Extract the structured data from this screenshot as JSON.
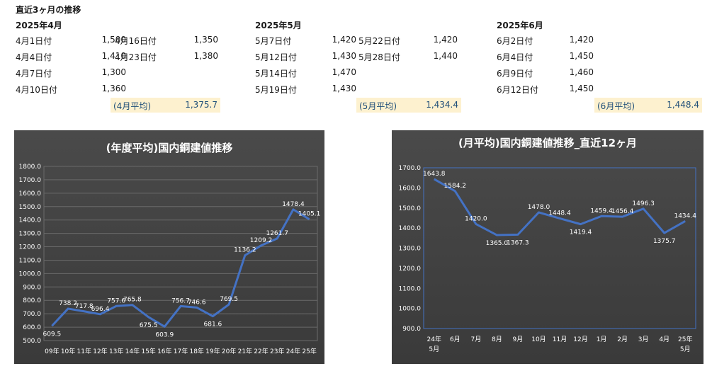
{
  "page_title": "直近3ヶ月の推移",
  "months": [
    {
      "heading": "2025年4月",
      "entries": [
        {
          "date": "4月1日付",
          "value": "1,500"
        },
        {
          "date": "4月4日付",
          "value": "1,410"
        },
        {
          "date": "4月7日付",
          "value": "1,300"
        },
        {
          "date": "4月10日付",
          "value": "1,360"
        },
        {
          "date": "4月16日付",
          "value": "1,350"
        },
        {
          "date": "4月23日付",
          "value": "1,380"
        }
      ],
      "avg_label": "(4月平均)",
      "avg_value": "1,375.7"
    },
    {
      "heading": "2025年5月",
      "entries": [
        {
          "date": "5月7日付",
          "value": "1,420"
        },
        {
          "date": "5月12日付",
          "value": "1,430"
        },
        {
          "date": "5月14日付",
          "value": "1,470"
        },
        {
          "date": "5月19日付",
          "value": "1,430"
        },
        {
          "date": "5月22日付",
          "value": "1,420"
        },
        {
          "date": "5月28日付",
          "value": "1,440"
        }
      ],
      "avg_label": "(5月平均)",
      "avg_value": "1,434.4"
    },
    {
      "heading": "2025年6月",
      "entries": [
        {
          "date": "6月2日付",
          "value": "1,420"
        },
        {
          "date": "6月4日付",
          "value": "1,450"
        },
        {
          "date": "6月9日付",
          "value": "1,460"
        },
        {
          "date": "6月12日付",
          "value": "1,450"
        }
      ],
      "avg_label": "(6月平均)",
      "avg_value": "1,448.4"
    }
  ],
  "chart_data": [
    {
      "type": "line",
      "title": "(年度平均)国内銅建値推移",
      "categories": [
        "09年",
        "10年",
        "11年",
        "12年",
        "13年",
        "14年",
        "15年",
        "16年",
        "17年",
        "18年",
        "19年",
        "20年",
        "21年",
        "22年",
        "23年",
        "24年",
        "25年"
      ],
      "values": [
        609.5,
        738.2,
        717.8,
        696.4,
        757.6,
        765.8,
        675.5,
        603.9,
        756.7,
        746.6,
        681.6,
        769.5,
        1136.2,
        1209.2,
        1261.7,
        1478.4,
        1405.1
      ],
      "ylim": [
        500,
        1800
      ],
      "yticks": [
        "500.0",
        "600.0",
        "700.0",
        "800.0",
        "900.0",
        "1000.0",
        "1100.0",
        "1200.0",
        "1300.0",
        "1400.0",
        "1500.0",
        "1600.0",
        "1700.0",
        "1800.0"
      ],
      "data_labels": [
        "609.5",
        "738.2",
        "717.8",
        "696.4",
        "757.6",
        "765.8",
        "675.5",
        "603.9",
        "756.7",
        "746.6",
        "681.6",
        "769.5",
        "1136.2",
        "1209.2",
        "1261.7",
        "1478.4",
        "1405.1"
      ],
      "grid": true,
      "line_color": "#4472c4"
    },
    {
      "type": "line",
      "title": "(月平均)国内銅建値推移_直近12ヶ月",
      "categories": [
        "24年\n5月",
        "6月",
        "7月",
        "8月",
        "9月",
        "10月",
        "11月",
        "12月",
        "1月",
        "2月",
        "3月",
        "4月",
        "25年\n5月"
      ],
      "values": [
        1643.8,
        1584.2,
        1420.0,
        1365.0,
        1367.3,
        1478.0,
        1448.4,
        1419.4,
        1459.4,
        1456.4,
        1496.3,
        1375.7,
        1434.4
      ],
      "ylim": [
        900,
        1700
      ],
      "yticks": [
        "900.0",
        "1000.0",
        "1100.0",
        "1200.0",
        "1300.0",
        "1400.0",
        "1500.0",
        "1600.0",
        "1700.0"
      ],
      "data_labels": [
        "1643.8",
        "1584.2",
        "1420.0",
        "1365.0",
        "1367.3",
        "1478.0",
        "1448.4",
        "1419.4",
        "1459.4",
        "1456.4",
        "1496.3",
        "1375.7",
        "1434.4"
      ],
      "grid": false,
      "line_color": "#4472c4"
    }
  ]
}
